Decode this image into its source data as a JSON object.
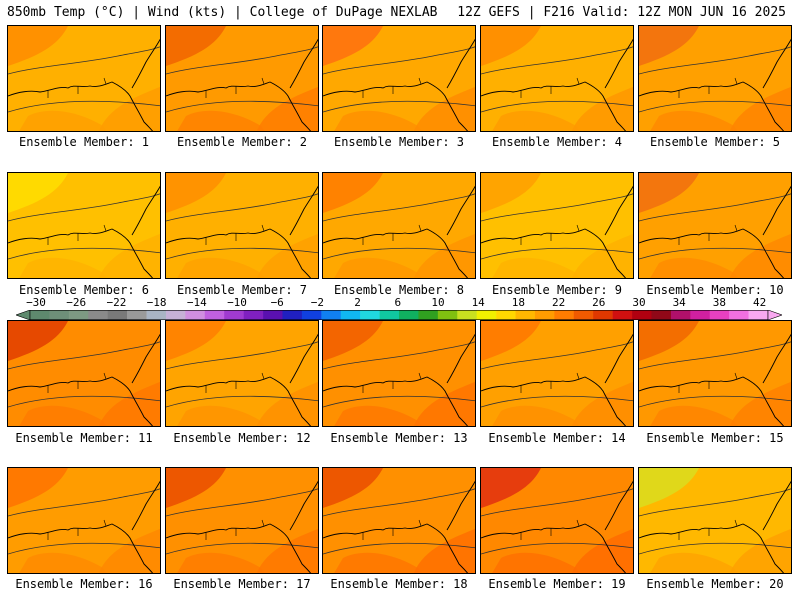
{
  "header": {
    "left": "850mb Temp (°C) | Wind (kts) | College of DuPage NEXLAB",
    "right": "12Z GEFS | F216 Valid: 12Z MON JUN 16 2025"
  },
  "colorbar": {
    "labels": [
      "−30",
      "−26",
      "−22",
      "−18",
      "−14",
      "−10",
      "−6",
      "−2",
      "2",
      "6",
      "10",
      "14",
      "18",
      "22",
      "26",
      "30",
      "34",
      "38",
      "42"
    ],
    "min": -32,
    "max": 44,
    "step": 2,
    "colors": [
      "#5e8a6e",
      "#6e8f79",
      "#7d9a83",
      "#8a8a8a",
      "#7a7a7a",
      "#9a9a9a",
      "#a9b4c4",
      "#c6b0d6",
      "#d08ee0",
      "#c060e0",
      "#a03ad0",
      "#8020c0",
      "#5a10b0",
      "#2020c0",
      "#1040e0",
      "#1080f0",
      "#10b8f0",
      "#20d8e0",
      "#10c8a0",
      "#10b060",
      "#30a020",
      "#80c010",
      "#c8e020",
      "#f0f000",
      "#ffd800",
      "#ffb800",
      "#ff9c00",
      "#ff7c00",
      "#f05a00",
      "#e03800",
      "#d01010",
      "#b00010",
      "#900818",
      "#b0106a",
      "#d020a0",
      "#e840c0",
      "#f070e0",
      "#f8a8f0"
    ]
  },
  "members": [
    {
      "label": "Ensemble Member: 1"
    },
    {
      "label": "Ensemble Member: 2"
    },
    {
      "label": "Ensemble Member: 3"
    },
    {
      "label": "Ensemble Member: 4"
    },
    {
      "label": "Ensemble Member: 5"
    },
    {
      "label": "Ensemble Member: 6"
    },
    {
      "label": "Ensemble Member: 7"
    },
    {
      "label": "Ensemble Member: 8"
    },
    {
      "label": "Ensemble Member: 9"
    },
    {
      "label": "Ensemble Member: 10"
    },
    {
      "label": "Ensemble Member: 11"
    },
    {
      "label": "Ensemble Member: 12"
    },
    {
      "label": "Ensemble Member: 13"
    },
    {
      "label": "Ensemble Member: 14"
    },
    {
      "label": "Ensemble Member: 15"
    },
    {
      "label": "Ensemble Member: 16"
    },
    {
      "label": "Ensemble Member: 17"
    },
    {
      "label": "Ensemble Member: 18"
    },
    {
      "label": "Ensemble Member: 19"
    },
    {
      "label": "Ensemble Member: 20"
    }
  ]
}
